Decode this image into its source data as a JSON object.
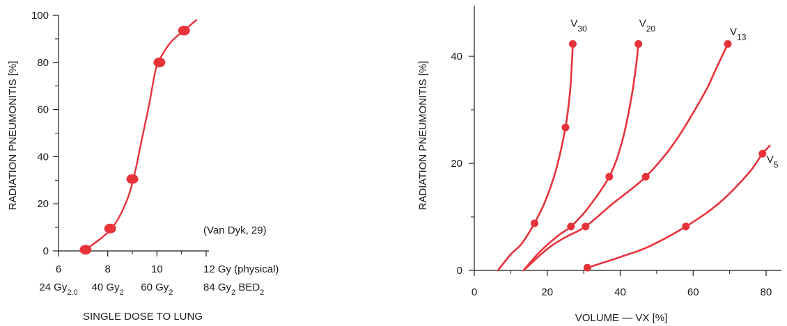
{
  "colors": {
    "curve": "#e8323a",
    "axis": "#1a1a1a",
    "background": "#ffffff"
  },
  "chart_data": [
    {
      "type": "line",
      "title": "",
      "xlabel": "SINGLE DOSE TO LUNG",
      "ylabel": "RADIATION PNEUMONITIS [%]",
      "annotation": "(Van Dyk, 29)",
      "xlim": [
        6,
        12
      ],
      "ylim": [
        0,
        100
      ],
      "yticks": [
        0,
        20,
        40,
        60,
        80,
        100
      ],
      "xtick_labels": [
        {
          "x": 6,
          "primary": "6",
          "secondary": "24 Gy",
          "secondary_sub": "2.0"
        },
        {
          "x": 8,
          "primary": "8",
          "secondary": "40 Gy",
          "secondary_sub": "2"
        },
        {
          "x": 10,
          "primary": "10",
          "secondary": "60 Gy",
          "secondary_sub": "2"
        },
        {
          "x": 12,
          "primary": "12 Gy (physical)",
          "secondary": "84 Gy",
          "secondary_sub": "2",
          "secondary_extra": " BED",
          "secondary_extra_sub": "2"
        }
      ],
      "grid": false,
      "series": [
        {
          "points": [
            [
              7.1,
              0.5
            ],
            [
              8.1,
              9.5
            ],
            [
              9.0,
              30.5
            ],
            [
              10.1,
              80
            ],
            [
              11.1,
              93.5
            ]
          ],
          "curve": [
            [
              7.0,
              0
            ],
            [
              7.3,
              2
            ],
            [
              7.8,
              6
            ],
            [
              8.3,
              11.5
            ],
            [
              8.8,
              22
            ],
            [
              9.1,
              33
            ],
            [
              9.4,
              48
            ],
            [
              9.7,
              63
            ],
            [
              9.95,
              77
            ],
            [
              10.2,
              83
            ],
            [
              10.6,
              89
            ],
            [
              11.1,
              93.5
            ],
            [
              11.6,
              98
            ]
          ]
        }
      ]
    },
    {
      "type": "line",
      "title": "",
      "xlabel": "VOLUME — VX [%]",
      "ylabel": "RADIATION PNEUMONITIS [%]",
      "xlim": [
        0,
        80
      ],
      "ylim": [
        0,
        40
      ],
      "xticks": [
        0,
        20,
        40,
        60,
        80
      ],
      "yticks": [
        0,
        20,
        40
      ],
      "grid": false,
      "series": [
        {
          "name": "V",
          "name_sub": "30",
          "points": [
            [
              16.5,
              8.8
            ],
            [
              25,
              26.7
            ],
            [
              27,
              42.3
            ]
          ],
          "curve": [
            [
              6.5,
              0
            ],
            [
              10,
              3
            ],
            [
              13,
              5
            ],
            [
              16.5,
              8.8
            ],
            [
              19.5,
              13
            ],
            [
              22.5,
              19
            ],
            [
              25,
              26.7
            ],
            [
              26.2,
              33
            ],
            [
              26.7,
              38
            ],
            [
              27,
              42.3
            ]
          ]
        },
        {
          "name": "V",
          "name_sub": "20",
          "points": [
            [
              26.5,
              8.2
            ],
            [
              37,
              17.5
            ],
            [
              45,
              42.3
            ]
          ],
          "curve": [
            [
              13.5,
              0
            ],
            [
              18,
              3.5
            ],
            [
              23,
              6.5
            ],
            [
              26.5,
              8.2
            ],
            [
              31,
              11.5
            ],
            [
              37,
              17.5
            ],
            [
              40.5,
              24
            ],
            [
              43,
              32
            ],
            [
              44.3,
              38
            ],
            [
              45,
              42.3
            ]
          ]
        },
        {
          "name": "V",
          "name_sub": "13",
          "points": [
            [
              30.5,
              8.2
            ],
            [
              47,
              17.5
            ],
            [
              69.5,
              42.3
            ]
          ],
          "curve": [
            [
              13.5,
              0
            ],
            [
              20,
              4
            ],
            [
              25,
              6.2
            ],
            [
              30.5,
              8.2
            ],
            [
              38,
              12.5
            ],
            [
              47,
              17.5
            ],
            [
              55,
              24
            ],
            [
              63,
              33
            ],
            [
              66.5,
              38
            ],
            [
              69.5,
              42.3
            ]
          ]
        },
        {
          "name": "V",
          "name_sub": "5",
          "points": [
            [
              31,
              0.5
            ],
            [
              58,
              8.2
            ],
            [
              79,
              21.8
            ]
          ],
          "curve": [
            [
              31,
              0.5
            ],
            [
              40,
              2.5
            ],
            [
              48,
              4.5
            ],
            [
              58,
              8.2
            ],
            [
              67,
              12.5
            ],
            [
              75,
              18
            ],
            [
              79,
              21.8
            ],
            [
              81,
              23.3
            ]
          ]
        }
      ]
    }
  ]
}
